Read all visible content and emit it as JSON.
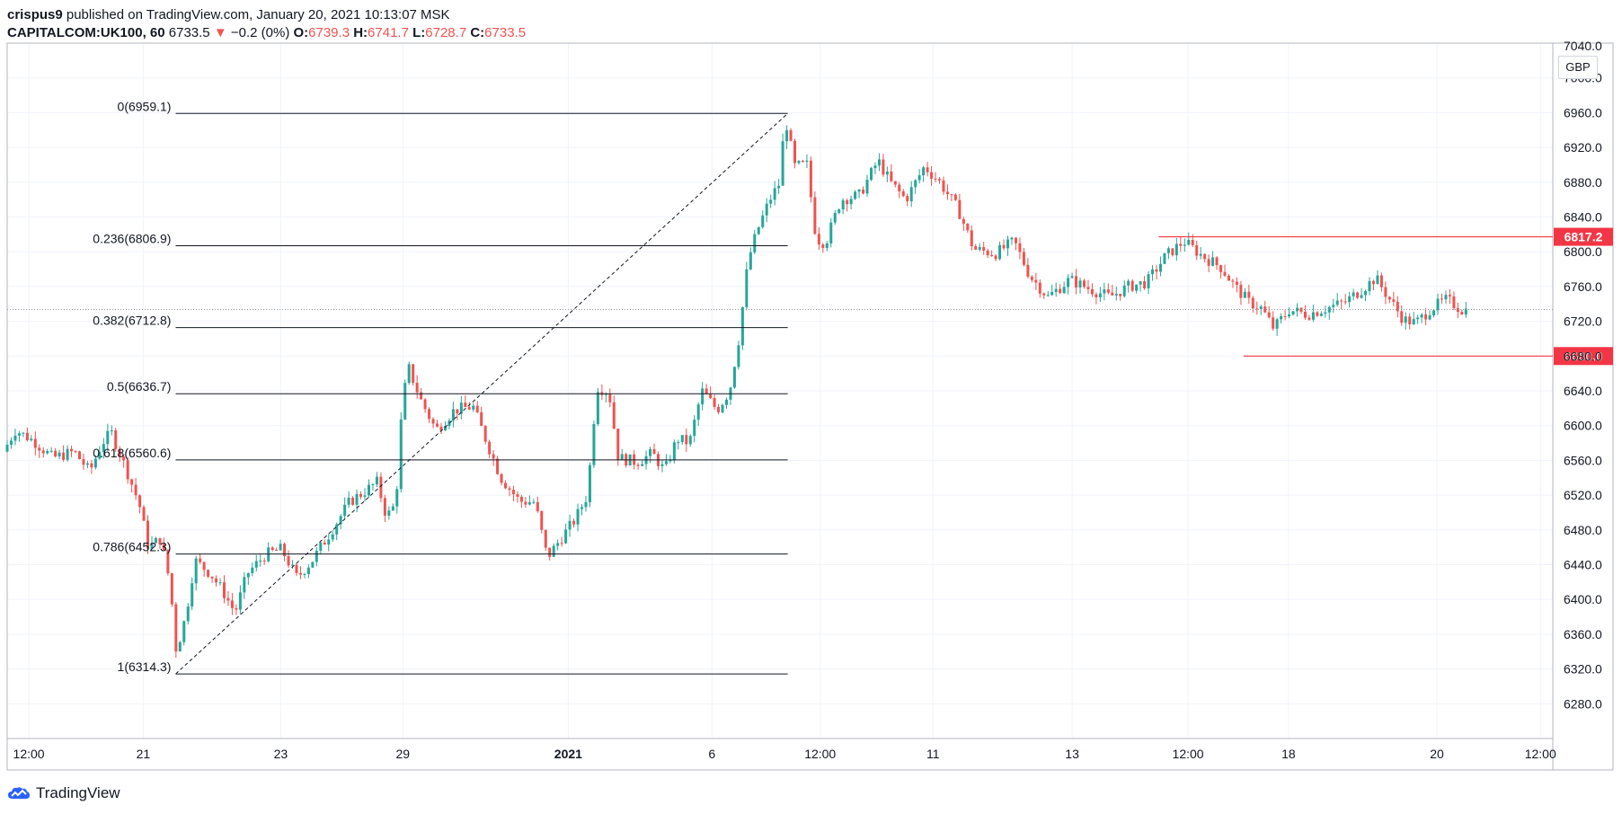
{
  "header": {
    "publisher": "crispus9",
    "published_text": "published on TradingView.com, January 20, 2021 10:13:07 MSK",
    "symbol": "CAPITALCOM:UK100, 60",
    "last": "6733.5",
    "change": "−0.2 (0%)",
    "o_label": "O:",
    "o_value": "6739.3",
    "h_label": "H:",
    "h_value": "6741.7",
    "l_label": "L:",
    "l_value": "6728.7",
    "c_label": "C:",
    "c_value": "6733.5"
  },
  "footer": {
    "brand": "TradingView"
  },
  "colors": {
    "up": "#26a69a",
    "down": "#ef5350",
    "level": "#f23645",
    "fib": "#131722",
    "grid": "#f0f3fa"
  },
  "chart_data": {
    "type": "candlestick",
    "title": "CAPITALCOM:UK100, 60",
    "currency": "GBP",
    "ylim": [
      6240,
      7040
    ],
    "y_ticks": [
      6280,
      6320,
      6360,
      6400,
      6440,
      6480,
      6520,
      6560,
      6600,
      6640,
      6680,
      6720,
      6760,
      6800,
      6840,
      6880,
      6920,
      6960,
      7000
    ],
    "y_tick_labels": [
      "6280.0",
      "6320.0",
      "6360.0",
      "6400.0",
      "6440.0",
      "6480.0",
      "6520.0",
      "6560.0",
      "6600.0",
      "6640.0",
      "6680.0",
      "6720.0",
      "6760.0",
      "6800.0",
      "6840.0",
      "6880.0",
      "6920.0",
      "6960.0",
      "7000.0"
    ],
    "y_top_label": "7040.0",
    "x_ticks": [
      {
        "label": "12:00",
        "t": 0.014,
        "bold": false
      },
      {
        "label": "21",
        "t": 0.088,
        "bold": false
      },
      {
        "label": "23",
        "t": 0.177,
        "bold": false
      },
      {
        "label": "29",
        "t": 0.256,
        "bold": false
      },
      {
        "label": "2021",
        "t": 0.363,
        "bold": true
      },
      {
        "label": "6",
        "t": 0.456,
        "bold": false
      },
      {
        "label": "12:00",
        "t": 0.526,
        "bold": false
      },
      {
        "label": "11",
        "t": 0.599,
        "bold": false
      },
      {
        "label": "13",
        "t": 0.689,
        "bold": false
      },
      {
        "label": "12:00",
        "t": 0.764,
        "bold": false
      },
      {
        "label": "18",
        "t": 0.829,
        "bold": false
      },
      {
        "label": "20",
        "t": 0.925,
        "bold": false
      },
      {
        "label": "12:00",
        "t": 0.992,
        "bold": false
      }
    ],
    "fibonacci": {
      "levels": [
        {
          "ratio": "0",
          "price": 6959.1,
          "label": "0(6959.1)"
        },
        {
          "ratio": "0.236",
          "price": 6806.9,
          "label": "0.236(6806.9)"
        },
        {
          "ratio": "0.382",
          "price": 6712.8,
          "label": "0.382(6712.8)"
        },
        {
          "ratio": "0.5",
          "price": 6636.7,
          "label": "0.5(6636.7)"
        },
        {
          "ratio": "0.618",
          "price": 6560.6,
          "label": "0.618(6560.6)"
        },
        {
          "ratio": "0.786",
          "price": 6452.3,
          "label": "0.786(6452.3)"
        },
        {
          "ratio": "1",
          "price": 6314.3,
          "label": "1(6314.3)"
        }
      ],
      "t_start": 0.109,
      "t_end": 0.505,
      "trend_from": {
        "t": 0.109,
        "price": 6314.3
      },
      "trend_to": {
        "t": 0.505,
        "price": 6959.1
      }
    },
    "horizontal_levels": [
      {
        "price": 6817.2,
        "label": "6817.2",
        "t_start": 0.745
      },
      {
        "price": 6680.0,
        "label": "6680.0",
        "t_start": 0.8
      }
    ],
    "last_price": 6733.5,
    "series": [
      {
        "t": 0.0,
        "price": 6570
      },
      {
        "t": 0.008,
        "price": 6595
      },
      {
        "t": 0.02,
        "price": 6582
      },
      {
        "t": 0.032,
        "price": 6563
      },
      {
        "t": 0.046,
        "price": 6570
      },
      {
        "t": 0.056,
        "price": 6547
      },
      {
        "t": 0.064,
        "price": 6580
      },
      {
        "t": 0.07,
        "price": 6592
      },
      {
        "t": 0.08,
        "price": 6548
      },
      {
        "t": 0.088,
        "price": 6510
      },
      {
        "t": 0.094,
        "price": 6460
      },
      {
        "t": 0.102,
        "price": 6470
      },
      {
        "t": 0.108,
        "price": 6418
      },
      {
        "t": 0.112,
        "price": 6340
      },
      {
        "t": 0.118,
        "price": 6380
      },
      {
        "t": 0.124,
        "price": 6445
      },
      {
        "t": 0.134,
        "price": 6430
      },
      {
        "t": 0.142,
        "price": 6410
      },
      {
        "t": 0.15,
        "price": 6385
      },
      {
        "t": 0.158,
        "price": 6430
      },
      {
        "t": 0.17,
        "price": 6452
      },
      {
        "t": 0.18,
        "price": 6458
      },
      {
        "t": 0.19,
        "price": 6425
      },
      {
        "t": 0.2,
        "price": 6445
      },
      {
        "t": 0.212,
        "price": 6478
      },
      {
        "t": 0.224,
        "price": 6512
      },
      {
        "t": 0.236,
        "price": 6527
      },
      {
        "t": 0.242,
        "price": 6535
      },
      {
        "t": 0.248,
        "price": 6495
      },
      {
        "t": 0.254,
        "price": 6510
      },
      {
        "t": 0.258,
        "price": 6620
      },
      {
        "t": 0.262,
        "price": 6668
      },
      {
        "t": 0.27,
        "price": 6630
      },
      {
        "t": 0.28,
        "price": 6595
      },
      {
        "t": 0.292,
        "price": 6618
      },
      {
        "t": 0.304,
        "price": 6622
      },
      {
        "t": 0.312,
        "price": 6585
      },
      {
        "t": 0.322,
        "price": 6540
      },
      {
        "t": 0.334,
        "price": 6513
      },
      {
        "t": 0.344,
        "price": 6512
      },
      {
        "t": 0.352,
        "price": 6448
      },
      {
        "t": 0.36,
        "price": 6468
      },
      {
        "t": 0.37,
        "price": 6492
      },
      {
        "t": 0.378,
        "price": 6520
      },
      {
        "t": 0.384,
        "price": 6645
      },
      {
        "t": 0.392,
        "price": 6638
      },
      {
        "t": 0.398,
        "price": 6563
      },
      {
        "t": 0.41,
        "price": 6558
      },
      {
        "t": 0.42,
        "price": 6568
      },
      {
        "t": 0.428,
        "price": 6548
      },
      {
        "t": 0.436,
        "price": 6585
      },
      {
        "t": 0.444,
        "price": 6580
      },
      {
        "t": 0.452,
        "price": 6640
      },
      {
        "t": 0.462,
        "price": 6618
      },
      {
        "t": 0.47,
        "price": 6640
      },
      {
        "t": 0.476,
        "price": 6700
      },
      {
        "t": 0.482,
        "price": 6790
      },
      {
        "t": 0.488,
        "price": 6825
      },
      {
        "t": 0.496,
        "price": 6860
      },
      {
        "t": 0.502,
        "price": 6878
      },
      {
        "t": 0.506,
        "price": 6955
      },
      {
        "t": 0.512,
        "price": 6898
      },
      {
        "t": 0.52,
        "price": 6900
      },
      {
        "t": 0.526,
        "price": 6815
      },
      {
        "t": 0.532,
        "price": 6810
      },
      {
        "t": 0.542,
        "price": 6860
      },
      {
        "t": 0.554,
        "price": 6865
      },
      {
        "t": 0.566,
        "price": 6905
      },
      {
        "t": 0.574,
        "price": 6880
      },
      {
        "t": 0.584,
        "price": 6860
      },
      {
        "t": 0.596,
        "price": 6898
      },
      {
        "t": 0.606,
        "price": 6880
      },
      {
        "t": 0.618,
        "price": 6848
      },
      {
        "t": 0.628,
        "price": 6803
      },
      {
        "t": 0.642,
        "price": 6798
      },
      {
        "t": 0.654,
        "price": 6812
      },
      {
        "t": 0.664,
        "price": 6773
      },
      {
        "t": 0.676,
        "price": 6748
      },
      {
        "t": 0.69,
        "price": 6768
      },
      {
        "t": 0.702,
        "price": 6758
      },
      {
        "t": 0.716,
        "price": 6748
      },
      {
        "t": 0.728,
        "price": 6760
      },
      {
        "t": 0.74,
        "price": 6765
      },
      {
        "t": 0.752,
        "price": 6795
      },
      {
        "t": 0.764,
        "price": 6812
      },
      {
        "t": 0.776,
        "price": 6795
      },
      {
        "t": 0.788,
        "price": 6782
      },
      {
        "t": 0.796,
        "price": 6762
      },
      {
        "t": 0.806,
        "price": 6742
      },
      {
        "t": 0.814,
        "price": 6735
      },
      {
        "t": 0.822,
        "price": 6712
      },
      {
        "t": 0.832,
        "price": 6733
      },
      {
        "t": 0.844,
        "price": 6728
      },
      {
        "t": 0.856,
        "price": 6735
      },
      {
        "t": 0.868,
        "price": 6742
      },
      {
        "t": 0.88,
        "price": 6758
      },
      {
        "t": 0.888,
        "price": 6770
      },
      {
        "t": 0.896,
        "price": 6748
      },
      {
        "t": 0.906,
        "price": 6722
      },
      {
        "t": 0.914,
        "price": 6718
      },
      {
        "t": 0.924,
        "price": 6735
      },
      {
        "t": 0.934,
        "price": 6745
      },
      {
        "t": 0.944,
        "price": 6733
      }
    ]
  }
}
